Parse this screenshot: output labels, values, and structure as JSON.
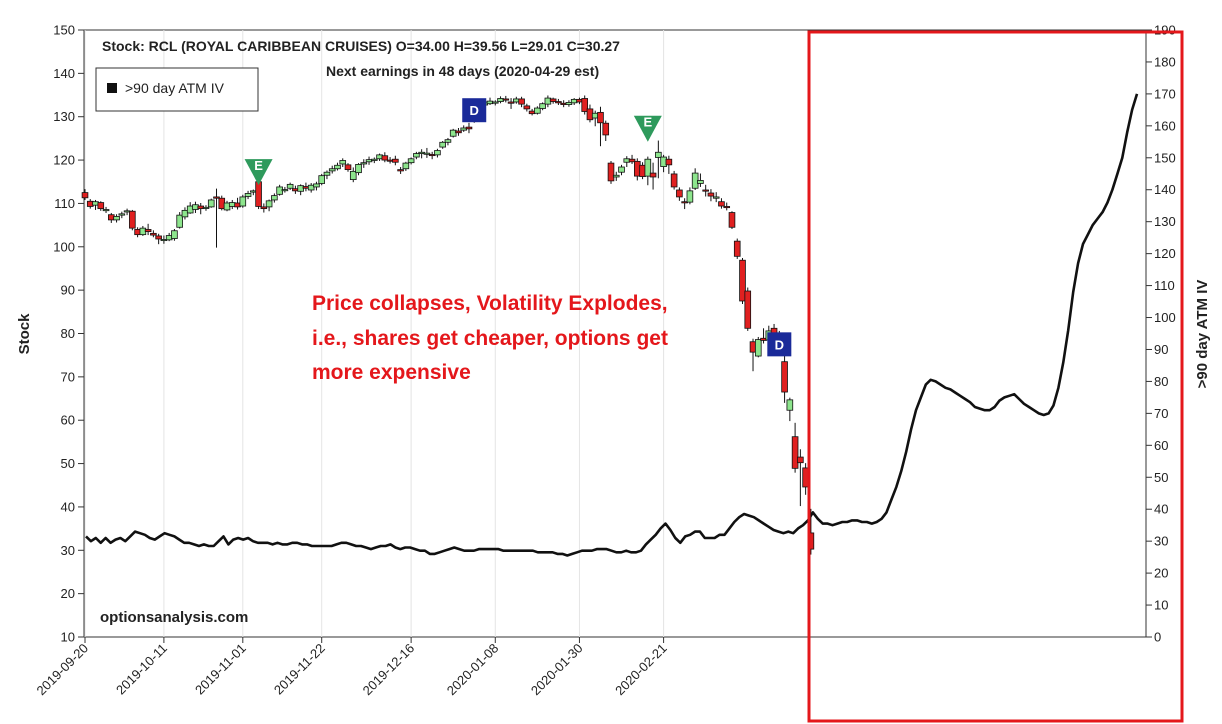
{
  "chart_data": {
    "type": "candlestick+line",
    "title": "Stock: RCL (ROYAL CARIBBEAN CRUISES) O=34.00  H=39.56  L=29.01  C=30.27",
    "subtitle": "Next earnings in 48 days  (2020-04-29 est)",
    "ylabel": "Stock",
    "y2label": ">90 day ATM IV",
    "ylim": [
      10,
      150
    ],
    "y2lim": [
      0,
      190
    ],
    "yticks": [
      "150",
      "140",
      "130",
      "120",
      "110",
      "100",
      "90",
      "80",
      "70",
      "60",
      "50",
      "40",
      "30",
      "20",
      "10"
    ],
    "y2ticks": [
      "190",
      "180",
      "170",
      "160",
      "150",
      "140",
      "130",
      "120",
      "110",
      "100",
      "90",
      "80",
      "70",
      "60",
      "50",
      "40",
      "30",
      "20",
      "10",
      "0"
    ],
    "xticks": [
      "2019-09-20",
      "2019-10-11",
      "2019-11-01",
      "2019-11-22",
      "2019-12-16",
      "2020-01-08",
      "2020-01-30",
      "2020-02-21"
    ],
    "legend": {
      "label": ">90 day ATM IV",
      "position": "top-left"
    },
    "watermark": "optionsanalysis.com",
    "annotation": {
      "lines": [
        "Price collapses, Volatility Explodes,",
        "i.e., shares get cheaper, options get",
        "more expensive"
      ],
      "color": "#e4171b"
    },
    "highlight_color": "#e4171b",
    "up_color": "#8de58d",
    "down_color": "#e02020",
    "candles_ohlc": [
      [
        112.5,
        113.3,
        110.8,
        111.3
      ],
      [
        110.5,
        111,
        108.8,
        109.3
      ],
      [
        109.6,
        110.8,
        108.5,
        110.4
      ],
      [
        110.2,
        110.5,
        108.3,
        108.8
      ],
      [
        108.6,
        109.2,
        107.8,
        108.6
      ],
      [
        107.4,
        107.8,
        105.5,
        106.2
      ],
      [
        106.2,
        107.5,
        105.6,
        107
      ],
      [
        107.3,
        108.1,
        106.6,
        107.6
      ],
      [
        108.2,
        108.8,
        107.3,
        108.3
      ],
      [
        108.2,
        108.5,
        103.8,
        104.3
      ],
      [
        104,
        104.5,
        102.2,
        102.8
      ],
      [
        102.8,
        104.8,
        102.5,
        104.3
      ],
      [
        104,
        105.3,
        102.7,
        103.5
      ],
      [
        103.1,
        103.8,
        102.2,
        102.7
      ],
      [
        102.5,
        103,
        100.6,
        101.8
      ],
      [
        101.5,
        102.6,
        100.7,
        101.7
      ],
      [
        101.6,
        103.2,
        101.3,
        102.6
      ],
      [
        101.9,
        104.1,
        101.4,
        103.7
      ],
      [
        104.5,
        108,
        104.2,
        107.3
      ],
      [
        106.9,
        109.1,
        106.3,
        108.4
      ],
      [
        107.8,
        110.3,
        107.6,
        109.4
      ],
      [
        108.6,
        110.4,
        107.8,
        109.7
      ],
      [
        109.4,
        110.1,
        107.5,
        108.8
      ],
      [
        108.9,
        109.6,
        108.3,
        109.1
      ],
      [
        109.2,
        111.1,
        109,
        110.8
      ],
      [
        111.5,
        113.4,
        99.8,
        111.2
      ],
      [
        111.2,
        111.8,
        108.4,
        108.8
      ],
      [
        108.5,
        110.6,
        108.2,
        110.1
      ],
      [
        109.3,
        110.8,
        108.7,
        110.2
      ],
      [
        110.1,
        111.3,
        108.6,
        109.2
      ],
      [
        109.4,
        112,
        109,
        111.5
      ],
      [
        111.6,
        112.9,
        111,
        112.3
      ],
      [
        112.6,
        113.2,
        111.9,
        112.9
      ],
      [
        115,
        115.5,
        108.7,
        109.3
      ],
      [
        109.2,
        110,
        107.9,
        108.8
      ],
      [
        109.2,
        110.9,
        108.2,
        110.6
      ],
      [
        110.8,
        112.3,
        110.2,
        111.8
      ],
      [
        112.1,
        114.3,
        111.8,
        113.8
      ],
      [
        113.2,
        113.8,
        112.5,
        113.2
      ],
      [
        113.5,
        114.8,
        113.1,
        114.4
      ],
      [
        113.4,
        114.1,
        112.2,
        112.9
      ],
      [
        112.8,
        114.4,
        111.9,
        114.1
      ],
      [
        113.9,
        114.8,
        112.8,
        113.5
      ],
      [
        113.1,
        114.7,
        112.5,
        114.2
      ],
      [
        113.8,
        115,
        113,
        114.5
      ],
      [
        114.6,
        116.8,
        114.2,
        116.4
      ],
      [
        116.5,
        117.6,
        115.6,
        117.2
      ],
      [
        117.5,
        118.7,
        116.9,
        118
      ],
      [
        118,
        119.4,
        117.6,
        118.8
      ],
      [
        119.1,
        120.4,
        118.4,
        119.9
      ],
      [
        118.9,
        119.3,
        117.3,
        117.8
      ],
      [
        115.5,
        118.3,
        114.9,
        117.4
      ],
      [
        117.1,
        119.3,
        116.5,
        119
      ],
      [
        119.1,
        120.2,
        118.2,
        119.4
      ],
      [
        119.6,
        120.8,
        118.9,
        120.1
      ],
      [
        119.9,
        120.6,
        119.3,
        120.2
      ],
      [
        120.3,
        121.5,
        119.8,
        121.2
      ],
      [
        121,
        121.8,
        119.5,
        120
      ],
      [
        120,
        120.7,
        119.2,
        119.9
      ],
      [
        120.2,
        121,
        118.8,
        119.5
      ],
      [
        117.8,
        118.4,
        116.8,
        117.5
      ],
      [
        118,
        119.6,
        117.5,
        119.3
      ],
      [
        119.4,
        120.6,
        119,
        120.3
      ],
      [
        120.7,
        121.9,
        120.2,
        121.5
      ],
      [
        121.5,
        122.5,
        120.4,
        121.8
      ],
      [
        121.5,
        122.8,
        120.5,
        121.6
      ],
      [
        121.3,
        121.9,
        120.2,
        121.1
      ],
      [
        121.2,
        122.6,
        120.6,
        122.2
      ],
      [
        123,
        124.4,
        122.6,
        124.1
      ],
      [
        124.1,
        125.1,
        123.4,
        124.7
      ],
      [
        125.5,
        127.2,
        125.2,
        126.9
      ],
      [
        126.7,
        127.4,
        125.6,
        126.3
      ],
      [
        126.9,
        128,
        126.5,
        127.4
      ],
      [
        127.6,
        128.6,
        126.2,
        127.2
      ],
      [
        129.5,
        130.4,
        128.6,
        129.2
      ],
      [
        130.6,
        134,
        130.2,
        133.5
      ],
      [
        132.7,
        134.1,
        132.1,
        133.4
      ],
      [
        133,
        134.4,
        132.7,
        133.6
      ],
      [
        133.3,
        133.8,
        132.6,
        133.4
      ],
      [
        133.5,
        134.7,
        133.1,
        134.2
      ],
      [
        134.1,
        134.8,
        133.3,
        133.9
      ],
      [
        133.4,
        134.3,
        131.8,
        133.1
      ],
      [
        133.4,
        134.6,
        133,
        134.1
      ],
      [
        134.1,
        134.6,
        132.2,
        132.9
      ],
      [
        132.5,
        133,
        131.2,
        131.8
      ],
      [
        131.3,
        131.8,
        130.3,
        130.7
      ],
      [
        130.8,
        132.4,
        130.5,
        132
      ],
      [
        131.9,
        133.3,
        131.5,
        133
      ],
      [
        132.9,
        134.9,
        132.2,
        134.3
      ],
      [
        134.1,
        134.4,
        133,
        133.5
      ],
      [
        133.5,
        134.1,
        132.7,
        133.2
      ],
      [
        133.1,
        133.8,
        132.2,
        132.8
      ],
      [
        132.8,
        133.8,
        132.3,
        133.3
      ],
      [
        133.2,
        134.3,
        132.7,
        134
      ],
      [
        134,
        134.4,
        132.9,
        133.4
      ],
      [
        134.2,
        134.9,
        130.5,
        131.2
      ],
      [
        131.8,
        132.8,
        128.7,
        129.3
      ],
      [
        129.7,
        131.4,
        127.8,
        130.8
      ],
      [
        131,
        132.3,
        123.2,
        128.6
      ],
      [
        128.5,
        129.1,
        124.4,
        125.8
      ],
      [
        119.3,
        119.8,
        114.5,
        115.2
      ],
      [
        116.1,
        117.3,
        115.2,
        116.5
      ],
      [
        117.2,
        118.9,
        116.5,
        118.4
      ],
      [
        119.5,
        120.9,
        118.4,
        120.3
      ],
      [
        120.2,
        121.2,
        119.1,
        119.6
      ],
      [
        119.7,
        120.4,
        115.3,
        116.3
      ],
      [
        118.8,
        119.5,
        115.6,
        116.2
      ],
      [
        116.3,
        120.8,
        114.2,
        120.2
      ],
      [
        117,
        119.4,
        113.2,
        116.1
      ],
      [
        120.6,
        124.5,
        115.8,
        121.8
      ],
      [
        118.5,
        121.2,
        117.2,
        120.7
      ],
      [
        120.2,
        121,
        116.8,
        118.9
      ],
      [
        116.8,
        117.5,
        113.2,
        113.8
      ],
      [
        113.1,
        113.7,
        110.6,
        111.5
      ],
      [
        110.4,
        111.2,
        108.7,
        110.3
      ],
      [
        110.3,
        113.7,
        109.8,
        112.9
      ],
      [
        113.5,
        118.1,
        113.1,
        117
      ],
      [
        114.6,
        116.9,
        113.8,
        115.3
      ],
      [
        113.1,
        114.3,
        111.6,
        112.9
      ],
      [
        112.4,
        113.3,
        110.5,
        111.7
      ],
      [
        111.2,
        112.6,
        110.3,
        111.5
      ],
      [
        110.4,
        111.2,
        108.8,
        109.4
      ],
      [
        109.3,
        110.2,
        108.4,
        109.2
      ],
      [
        107.9,
        108.2,
        104.1,
        104.5
      ],
      [
        101.3,
        101.9,
        97.2,
        97.8
      ],
      [
        96.9,
        97.4,
        86.8,
        87.5
      ],
      [
        89.8,
        90.6,
        80.6,
        81.2
      ],
      [
        78.1,
        78.8,
        71.3,
        75.7
      ],
      [
        74.8,
        79.2,
        74.5,
        78.6
      ],
      [
        78.9,
        81.2,
        77.7,
        78.4
      ],
      [
        78.5,
        81.8,
        76.8,
        80.6
      ],
      [
        81.2,
        82.2,
        75.3,
        78
      ],
      [
        80,
        80.6,
        78.4,
        79.2
      ],
      [
        73.5,
        77.4,
        64,
        66.5
      ],
      [
        62.3,
        65.2,
        59.8,
        64.7
      ],
      [
        56.2,
        59.4,
        47.9,
        48.9
      ],
      [
        51.5,
        53.3,
        40.2,
        50.2
      ],
      [
        49,
        50.1,
        42.8,
        44.6
      ],
      [
        34,
        39.56,
        29.01,
        30.27
      ]
    ],
    "iv_values": [
      31.5,
      30,
      31,
      29.5,
      31,
      29.5,
      30.5,
      31,
      30,
      31.5,
      33,
      32.5,
      32,
      31,
      30.5,
      31.5,
      32.5,
      32,
      31.5,
      30.5,
      29.5,
      29.5,
      29,
      28.5,
      29,
      28.5,
      28.5,
      30,
      31.5,
      29,
      30.5,
      31,
      30.5,
      31,
      30,
      29.5,
      29.5,
      29.5,
      29,
      29.5,
      29,
      29,
      29.5,
      29.5,
      29,
      29,
      28.5,
      28.5,
      28.5,
      28.5,
      28.5,
      29,
      29.5,
      29.5,
      29,
      28.5,
      28.5,
      28,
      27.5,
      28,
      28.5,
      28.5,
      29,
      28,
      27.5,
      28,
      28,
      27.5,
      27,
      27,
      26,
      26,
      26.5,
      27,
      27.5,
      28,
      27.5,
      27,
      27,
      27,
      27.5,
      27.5,
      27.5,
      27.5,
      27.5,
      27,
      27,
      27,
      27,
      27,
      27,
      27,
      26.5,
      26.5,
      26.5,
      26.5,
      26,
      26,
      25.5,
      26,
      26.5,
      27,
      27,
      27,
      27.5,
      27.5,
      27.5,
      27,
      26.5,
      26.5,
      27,
      26.5,
      26.5,
      27,
      29,
      30.5,
      32,
      34,
      35.5,
      33.5,
      31,
      29.5,
      31.5,
      32,
      33,
      33,
      31,
      31,
      31,
      32,
      32,
      34,
      36,
      37.5,
      38.5,
      38,
      37.5,
      36.5,
      35.5,
      34.5,
      33.5,
      33,
      32.5,
      33,
      32.5,
      34,
      35,
      36.5,
      39,
      37,
      35.5,
      35.5,
      35,
      35.5,
      36,
      36,
      36.5,
      36.5,
      36,
      36,
      35.5,
      36,
      37,
      39,
      43,
      47,
      52,
      58,
      65,
      71,
      75,
      79,
      80.5,
      80,
      79,
      78,
      77.5,
      76.5,
      75.5,
      74.5,
      73.5,
      72,
      71.5,
      71,
      71,
      72,
      74,
      75,
      75.5,
      76,
      74.5,
      73,
      72,
      71,
      70,
      69.5,
      70,
      72.5,
      78,
      86,
      96,
      108,
      117,
      123,
      126,
      129,
      131,
      133,
      136,
      140,
      145,
      150,
      158,
      165,
      170
    ],
    "markers": [
      {
        "type": "E",
        "candle": 33,
        "y": 117,
        "color": "#2e9a5c"
      },
      {
        "type": "D",
        "candle": 74,
        "y": 131.5,
        "color": "#1a2a99"
      },
      {
        "type": "E",
        "candle": 107,
        "y": 127,
        "color": "#2e9a5c"
      },
      {
        "type": "D",
        "candle": 132,
        "y": 77.5,
        "color": "#1a2a99"
      }
    ]
  }
}
